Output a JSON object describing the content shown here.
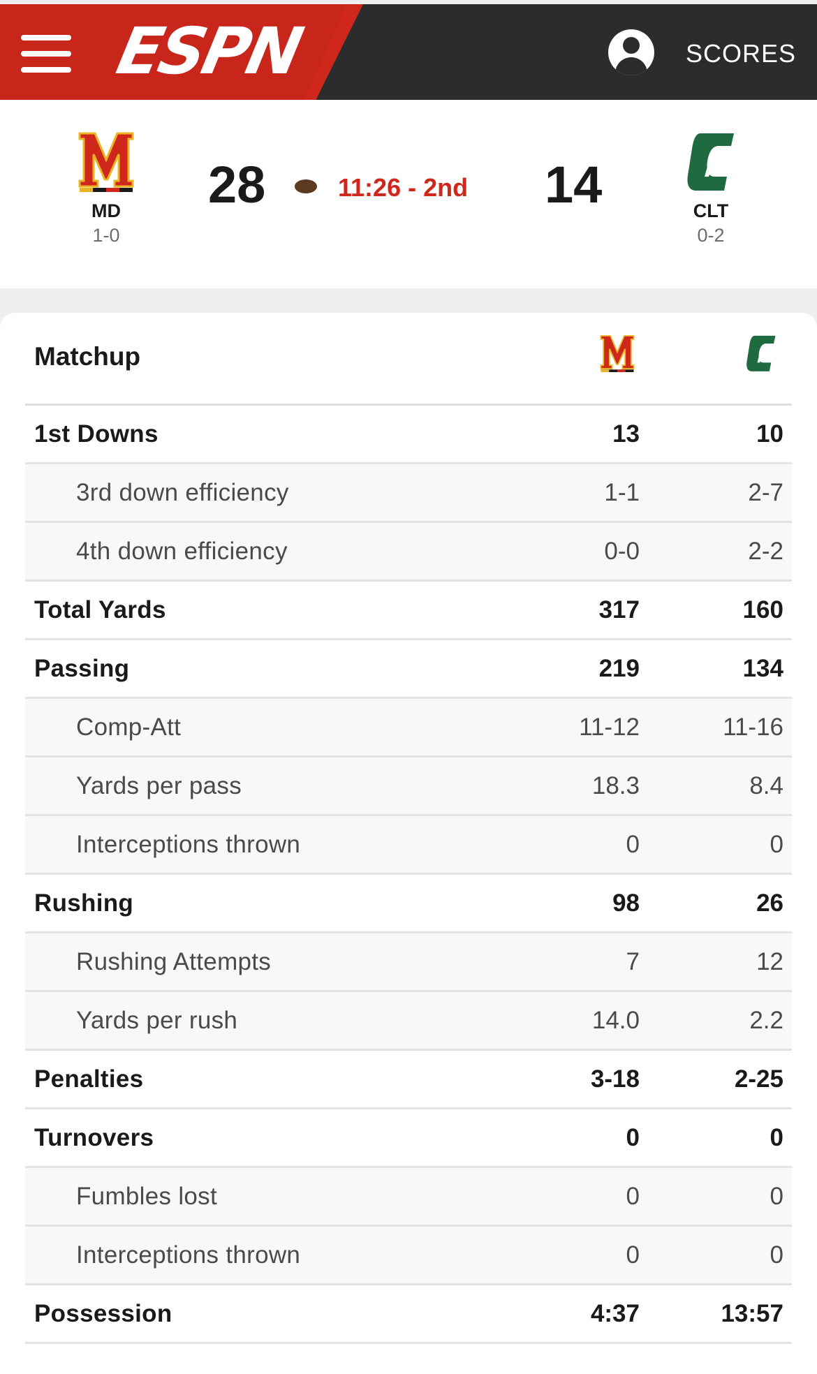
{
  "header": {
    "menu_icon": "hamburger-menu-icon",
    "brand": "ESPN",
    "account_icon": "user-account-icon",
    "scores_label": "SCORES",
    "colors": {
      "brand_red": "#d0271d",
      "bar_dark": "#2b2c2d"
    }
  },
  "game": {
    "home": {
      "abbr": "MD",
      "record": "1-0",
      "score": "28",
      "logo": "maryland-m-logo-icon"
    },
    "away": {
      "abbr": "CLT",
      "record": "0-2",
      "score": "14",
      "logo": "charlotte-c-logo-icon"
    },
    "possession_icon": "football-icon",
    "clock": "11:26 - 2nd"
  },
  "matchup": {
    "title": "Matchup",
    "rows": [
      {
        "label": "1st Downs",
        "md": "13",
        "clt": "10",
        "sub": false
      },
      {
        "label": "3rd down efficiency",
        "md": "1-1",
        "clt": "2-7",
        "sub": true
      },
      {
        "label": "4th down efficiency",
        "md": "0-0",
        "clt": "2-2",
        "sub": true
      },
      {
        "label": "Total Yards",
        "md": "317",
        "clt": "160",
        "sub": false
      },
      {
        "label": "Passing",
        "md": "219",
        "clt": "134",
        "sub": false
      },
      {
        "label": "Comp-Att",
        "md": "11-12",
        "clt": "11-16",
        "sub": true
      },
      {
        "label": "Yards per pass",
        "md": "18.3",
        "clt": "8.4",
        "sub": true
      },
      {
        "label": "Interceptions thrown",
        "md": "0",
        "clt": "0",
        "sub": true
      },
      {
        "label": "Rushing",
        "md": "98",
        "clt": "26",
        "sub": false
      },
      {
        "label": "Rushing Attempts",
        "md": "7",
        "clt": "12",
        "sub": true
      },
      {
        "label": "Yards per rush",
        "md": "14.0",
        "clt": "2.2",
        "sub": true
      },
      {
        "label": "Penalties",
        "md": "3-18",
        "clt": "2-25",
        "sub": false
      },
      {
        "label": "Turnovers",
        "md": "0",
        "clt": "0",
        "sub": false
      },
      {
        "label": "Fumbles lost",
        "md": "0",
        "clt": "0",
        "sub": true
      },
      {
        "label": "Interceptions thrown",
        "md": "0",
        "clt": "0",
        "sub": true
      },
      {
        "label": "Possession",
        "md": "4:37",
        "clt": "13:57",
        "sub": false
      }
    ]
  }
}
